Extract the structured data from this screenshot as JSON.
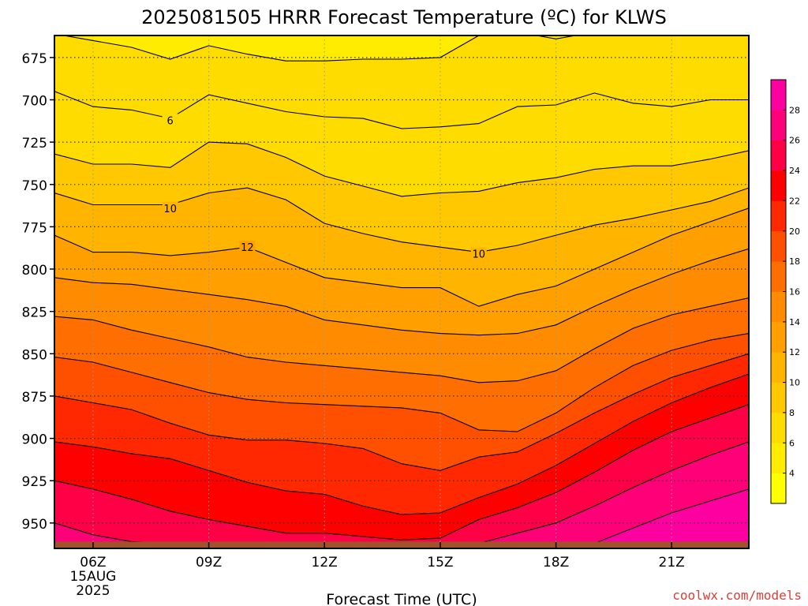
{
  "chart_data": {
    "type": "heatmap",
    "title": "2025081505 HRRR Forecast Temperature (ºC) for KLWS",
    "xlabel": "Forecast Time (UTC)",
    "ylabel": "",
    "credit": "coolwx.com/models",
    "x_unit": "hours UTC, 15 Aug 2025",
    "xlim": [
      5,
      23
    ],
    "x_ticks": [
      {
        "value": 6,
        "label": "06Z",
        "sub1": "15AUG",
        "sub2": "2025"
      },
      {
        "value": 9,
        "label": "09Z"
      },
      {
        "value": 12,
        "label": "12Z"
      },
      {
        "value": 15,
        "label": "15Z"
      },
      {
        "value": 18,
        "label": "18Z"
      },
      {
        "value": 21,
        "label": "21Z"
      }
    ],
    "y_unit": "hPa",
    "ylim": [
      662,
      965
    ],
    "y_ticks": [
      675,
      700,
      725,
      750,
      775,
      800,
      825,
      850,
      875,
      900,
      925,
      950
    ],
    "grid": true,
    "colorbar": {
      "unit": "°C",
      "min": 2,
      "max": 30,
      "step": 2,
      "tick_labels": [
        4,
        6,
        8,
        10,
        12,
        14,
        16,
        18,
        20,
        22,
        24,
        26,
        28
      ],
      "colors": [
        "#ffff00",
        "#ffec00",
        "#ffdc00",
        "#ffc800",
        "#ffb400",
        "#ffa000",
        "#ff8c00",
        "#ff6e00",
        "#ff5000",
        "#ff2800",
        "#ff0000",
        "#ff0046",
        "#ff0078",
        "#ff00a0"
      ]
    },
    "surface_color": "#a0522d",
    "surface_pressure_hpa": 961,
    "contour_labels": [
      {
        "value": 6,
        "x": 8.0,
        "p": 712
      },
      {
        "value": 10,
        "x": 8.0,
        "p": 764
      },
      {
        "value": 12,
        "x": 10.0,
        "p": 787
      },
      {
        "value": 10,
        "x": 16.0,
        "p": 791
      }
    ],
    "x": [
      5,
      6,
      7,
      8,
      9,
      10,
      11,
      12,
      13,
      14,
      15,
      16,
      17,
      18,
      19,
      20,
      21,
      22,
      23
    ],
    "isotherms": [
      {
        "value": 5,
        "p": [
          661,
          665,
          669,
          676,
          668,
          673,
          677,
          677,
          676,
          676,
          675,
          662,
          660,
          664,
          660,
          660,
          660,
          660,
          660
        ]
      },
      {
        "value": 6,
        "p": [
          695,
          704,
          706,
          711,
          697,
          702,
          707,
          710,
          711,
          717,
          716,
          714,
          704,
          703,
          696,
          702,
          704,
          700,
          700
        ]
      },
      {
        "value": 8,
        "p": [
          732,
          738,
          738,
          740,
          725,
          726,
          734,
          745,
          751,
          757,
          755,
          754,
          749,
          746,
          741,
          739,
          739,
          735,
          730
        ]
      },
      {
        "value": 10,
        "p": [
          755,
          762,
          762,
          762,
          755,
          752,
          759,
          773,
          779,
          784,
          787,
          790,
          786,
          780,
          774,
          770,
          765,
          760,
          752
        ]
      },
      {
        "value": 12,
        "p": [
          780,
          790,
          790,
          792,
          790,
          787,
          796,
          805,
          808,
          811,
          811,
          822,
          815,
          810,
          800,
          790,
          780,
          772,
          764
        ]
      },
      {
        "value": 14,
        "p": [
          805,
          808,
          809,
          812,
          815,
          818,
          822,
          830,
          833,
          836,
          838,
          839,
          838,
          833,
          822,
          812,
          803,
          795,
          788
        ]
      },
      {
        "value": 16,
        "p": [
          828,
          830,
          836,
          841,
          846,
          852,
          855,
          857,
          859,
          861,
          863,
          867,
          866,
          860,
          847,
          835,
          827,
          822,
          817
        ]
      },
      {
        "value": 18,
        "p": [
          852,
          855,
          861,
          867,
          873,
          877,
          879,
          880,
          881,
          882,
          885,
          895,
          896,
          885,
          870,
          857,
          848,
          842,
          838
        ]
      },
      {
        "value": 20,
        "p": [
          875,
          879,
          883,
          891,
          898,
          901,
          901,
          903,
          906,
          915,
          919,
          911,
          908,
          897,
          885,
          874,
          864,
          857,
          850
        ]
      },
      {
        "value": 22,
        "p": [
          902,
          905,
          909,
          912,
          919,
          926,
          931,
          933,
          940,
          945,
          944,
          935,
          927,
          916,
          903,
          890,
          879,
          870,
          862
        ]
      },
      {
        "value": 24,
        "p": [
          925,
          930,
          936,
          943,
          948,
          952,
          956,
          956,
          958,
          960,
          959,
          948,
          941,
          932,
          920,
          907,
          896,
          888,
          880
        ]
      },
      {
        "value": 26,
        "p": [
          950,
          957,
          961,
          962,
          963,
          963,
          963,
          963,
          963,
          963,
          963,
          962,
          956,
          950,
          940,
          929,
          919,
          910,
          902
        ]
      },
      {
        "value": 28,
        "p": [
          966,
          966,
          966,
          966,
          966,
          966,
          966,
          966,
          966,
          966,
          966,
          966,
          966,
          966,
          962,
          953,
          944,
          937,
          930
        ]
      }
    ]
  }
}
